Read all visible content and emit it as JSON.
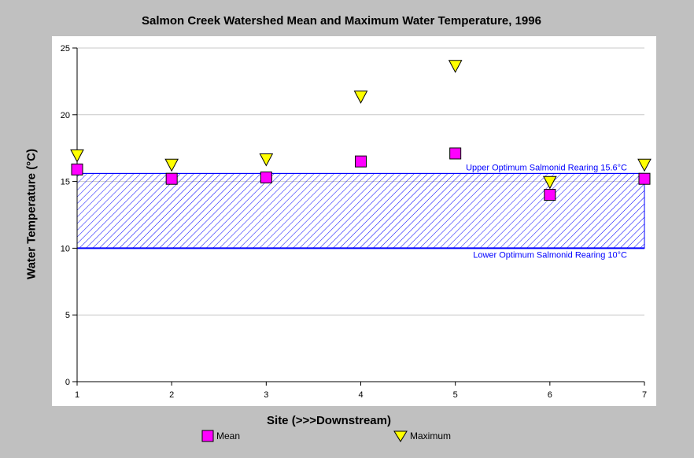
{
  "chart_data": {
    "type": "scatter",
    "title": "Salmon Creek Watershed Mean and Maximum Water Temperature, 1996",
    "xlabel": "Site (>>>Downstream)",
    "ylabel": "Water Temperature (°C)",
    "x": [
      1,
      2,
      3,
      4,
      5,
      6,
      7
    ],
    "xlim": [
      1,
      7
    ],
    "ylim": [
      0,
      25
    ],
    "x_ticks": [
      "1",
      "2",
      "3",
      "4",
      "5",
      "6",
      "7"
    ],
    "y_ticks": [
      "0",
      "5",
      "10",
      "15",
      "20",
      "25"
    ],
    "grid": true,
    "legend_position": "bottom",
    "series": [
      {
        "name": "Mean",
        "marker": "square",
        "color": "#ff00ff",
        "values": [
          15.9,
          15.2,
          15.3,
          16.5,
          17.1,
          14.0,
          15.2
        ]
      },
      {
        "name": "Maximum",
        "marker": "triangle-down",
        "color": "#ffff00",
        "values": [
          16.9,
          16.2,
          16.6,
          21.3,
          23.6,
          14.9,
          16.2
        ]
      }
    ],
    "bands": {
      "color": "#0000ff",
      "lower": {
        "value": 10,
        "label": "Lower Optimum Salmonid Rearing 10°C"
      },
      "upper": {
        "value": 15.6,
        "label": "Upper Optimum Salmonid Rearing 15.6°C"
      }
    }
  }
}
